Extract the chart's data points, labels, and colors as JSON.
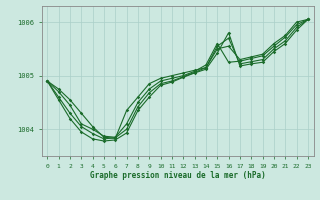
{
  "xlabel": "Graphe pression niveau de la mer (hPa)",
  "bg_color": "#cce8e0",
  "line_color": "#1a6b2a",
  "grid_color": "#aacfc8",
  "axis_label_color": "#1a6b2a",
  "xlim": [
    -0.5,
    23.5
  ],
  "ylim": [
    1003.5,
    1006.3
  ],
  "yticks": [
    1004,
    1005,
    1006
  ],
  "xticks": [
    0,
    1,
    2,
    3,
    4,
    5,
    6,
    7,
    8,
    9,
    10,
    11,
    12,
    13,
    14,
    15,
    16,
    17,
    18,
    19,
    20,
    21,
    22,
    23
  ],
  "series": [
    [
      1004.9,
      1004.75,
      1004.55,
      1004.3,
      1004.05,
      1003.85,
      1003.83,
      1004.35,
      1004.6,
      1004.85,
      1004.95,
      1005.0,
      1005.05,
      1005.1,
      1005.15,
      1005.5,
      1005.55,
      1005.3,
      1005.35,
      1005.4,
      1005.6,
      1005.75,
      1006.0,
      1006.05
    ],
    [
      1004.9,
      1004.7,
      1004.45,
      1004.1,
      1004.0,
      1003.87,
      1003.85,
      1004.1,
      1004.5,
      1004.75,
      1004.9,
      1004.95,
      1005.0,
      1005.08,
      1005.2,
      1005.6,
      1005.25,
      1005.27,
      1005.32,
      1005.37,
      1005.55,
      1005.72,
      1005.95,
      1006.05
    ],
    [
      1004.9,
      1004.6,
      1004.3,
      1004.05,
      1003.92,
      1003.82,
      1003.84,
      1004.0,
      1004.42,
      1004.68,
      1004.85,
      1004.9,
      1004.98,
      1005.06,
      1005.15,
      1005.55,
      1005.7,
      1005.22,
      1005.26,
      1005.3,
      1005.5,
      1005.65,
      1005.9,
      1006.05
    ],
    [
      1004.9,
      1004.55,
      1004.2,
      1003.95,
      1003.82,
      1003.78,
      1003.8,
      1003.93,
      1004.35,
      1004.6,
      1004.82,
      1004.88,
      1004.97,
      1005.05,
      1005.12,
      1005.42,
      1005.8,
      1005.18,
      1005.22,
      1005.25,
      1005.45,
      1005.6,
      1005.85,
      1006.05
    ]
  ]
}
